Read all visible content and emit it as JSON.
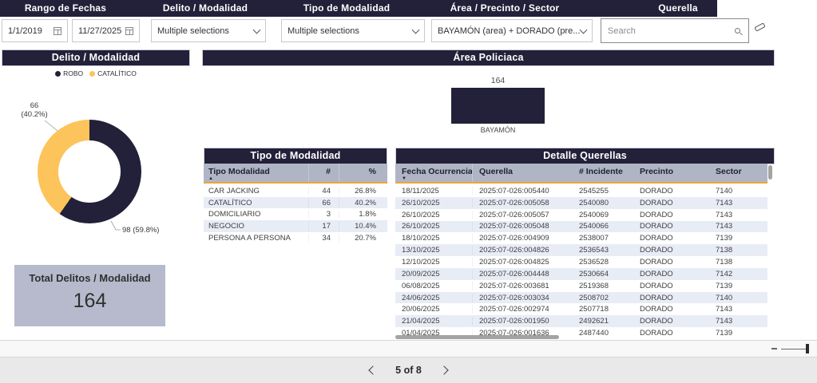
{
  "theme": {
    "navy": "#232039",
    "yellow": "#FCC45A",
    "header_gray": "#AFB5C5",
    "row_alt": "#E8ECF5",
    "accent": "#EDA33D",
    "card_bg": "#B6BACC"
  },
  "filter_bar": {
    "sections": [
      "Rango de Fechas",
      "Delito / Modalidad",
      "Tipo de Modalidad",
      "Área / Precinto / Sector",
      "Querella"
    ],
    "date_from": "1/1/2019",
    "date_to": "11/27/2025",
    "delito_value": "Multiple selections",
    "tipo_value": "Multiple selections",
    "area_value": "BAYAMÓN (area) + DORADO (pre...",
    "search_placeholder": "Search"
  },
  "donut_chart": {
    "type": "pie",
    "title": "Delito / Modalidad",
    "legend": [
      {
        "label": "ROBO",
        "color": "#232039"
      },
      {
        "label": "CATALÍTICO",
        "color": "#FCC45A"
      }
    ],
    "slices": [
      {
        "label": "ROBO",
        "value": 98,
        "pct": 59.8
      },
      {
        "label": "CATALÍTICO",
        "value": 66,
        "pct": 40.2
      }
    ],
    "callouts": {
      "catalitico_value": "66",
      "catalitico_pct": "(40.2%)",
      "robo": "98 (59.8%)"
    }
  },
  "bar_chart": {
    "type": "bar",
    "title": "Área Policiaca",
    "categories": [
      "BAYAMÓN"
    ],
    "values": [
      164
    ],
    "value_label": "164",
    "category_label": "BAYAMÓN"
  },
  "total_card": {
    "title": "Total Delitos / Modalidad",
    "value": "164"
  },
  "tipo_table": {
    "title": "Tipo de Modalidad",
    "columns": [
      "Tipo Modalidad",
      "#",
      "%"
    ],
    "sort": "Tipo Modalidad ascending",
    "rows": [
      [
        "CAR JACKING",
        "44",
        "26.8%"
      ],
      [
        "CATALÍTICO",
        "66",
        "40.2%"
      ],
      [
        "DOMICILIARIO",
        "3",
        "1.8%"
      ],
      [
        "NEGOCIO",
        "17",
        "10.4%"
      ],
      [
        "PERSONA A PERSONA",
        "34",
        "20.7%"
      ]
    ]
  },
  "detail_table": {
    "title": "Detalle Querellas",
    "columns": [
      "Fecha Ocurrencia",
      "Querella",
      "# Incidente",
      "Precinto",
      "Sector"
    ],
    "sort": "Fecha Ocurrencia descending",
    "rows": [
      [
        "18/11/2025",
        "2025:07-026:005440",
        "2545255",
        "DORADO",
        "7140"
      ],
      [
        "26/10/2025",
        "2025:07-026:005058",
        "2540080",
        "DORADO",
        "7143"
      ],
      [
        "26/10/2025",
        "2025:07-026:005057",
        "2540069",
        "DORADO",
        "7143"
      ],
      [
        "26/10/2025",
        "2025:07-026:005048",
        "2540066",
        "DORADO",
        "7143"
      ],
      [
        "18/10/2025",
        "2025:07-026:004909",
        "2538007",
        "DORADO",
        "7139"
      ],
      [
        "13/10/2025",
        "2025:07-026:004826",
        "2536543",
        "DORADO",
        "7138"
      ],
      [
        "12/10/2025",
        "2025:07-026:004825",
        "2536528",
        "DORADO",
        "7138"
      ],
      [
        "20/09/2025",
        "2025:07-026:004448",
        "2530664",
        "DORADO",
        "7142"
      ],
      [
        "06/08/2025",
        "2025:07-026:003681",
        "2519368",
        "DORADO",
        "7139"
      ],
      [
        "24/06/2025",
        "2025:07-026:003034",
        "2508702",
        "DORADO",
        "7140"
      ],
      [
        "20/06/2025",
        "2025:07-026:002974",
        "2507718",
        "DORADO",
        "7143"
      ],
      [
        "21/04/2025",
        "2025:07-026:001950",
        "2492621",
        "DORADO",
        "7143"
      ],
      [
        "01/04/2025",
        "2025:07-026:001636",
        "2487440",
        "DORADO",
        "7139"
      ]
    ]
  },
  "pagination": {
    "label": "5 of 8"
  }
}
